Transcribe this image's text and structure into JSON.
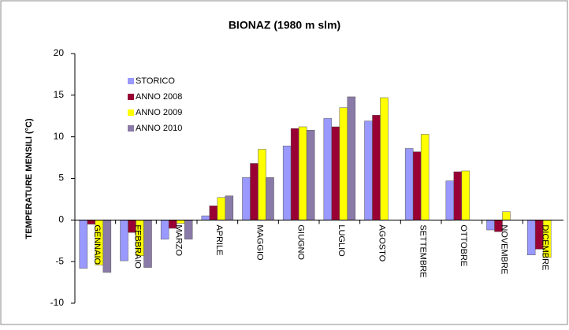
{
  "chart_data": {
    "type": "bar",
    "title": "BIONAZ (1980 m slm)",
    "y_label": "TEMPERATURE MENSILI (°C)",
    "categories": [
      "GENNAIO",
      "FEBBRAIO",
      "MARZO",
      "APRILE",
      "MAGGIO",
      "GIUGNO",
      "LUGLIO",
      "AGOSTO",
      "SETTEMBRE",
      "OTTOBRE",
      "NOVEMBRE",
      "DICEMBRE"
    ],
    "series": [
      {
        "name": "STORICO",
        "color": "#9999ff",
        "values": [
          -5.8,
          -4.9,
          -2.3,
          0.5,
          5.1,
          8.9,
          12.2,
          11.9,
          8.6,
          4.7,
          -1.2,
          -4.2
        ]
      },
      {
        "name": "ANNO 2008",
        "color": "#990033",
        "values": [
          -0.5,
          -1.5,
          -1.0,
          1.7,
          6.8,
          11.0,
          11.2,
          12.6,
          8.2,
          5.8,
          -1.4,
          -3.5
        ]
      },
      {
        "name": "ANNO 2009",
        "color": "#ffff00",
        "values": [
          -5.4,
          -4.3,
          -0.4,
          2.7,
          8.5,
          11.2,
          13.5,
          14.7,
          10.3,
          5.9,
          1.0,
          -4.5
        ]
      },
      {
        "name": "ANNO 2010",
        "color": "#8a7aa8",
        "values": [
          -6.3,
          -5.7,
          -2.3,
          2.9,
          5.1,
          10.8,
          14.8,
          null,
          null,
          null,
          null,
          null
        ]
      }
    ],
    "ylim": [
      -10,
      20
    ],
    "yticks": [
      -10,
      -5,
      0,
      5,
      10,
      15,
      20
    ],
    "grid": false
  }
}
